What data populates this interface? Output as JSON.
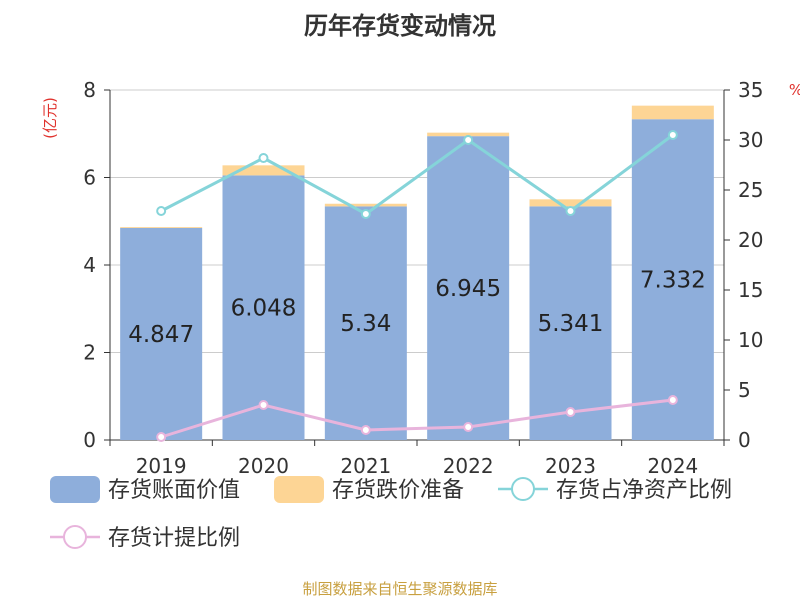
{
  "title": "历年存货变动情况",
  "footer": "制图数据来自恒生聚源数据库",
  "chart_data": {
    "type": "bar",
    "stacked": true,
    "categories": [
      "2019",
      "2020",
      "2021",
      "2022",
      "2023",
      "2024"
    ],
    "left_axis": {
      "unit": "(亿元)",
      "ylim": [
        0,
        8
      ],
      "ticks": [
        0,
        2,
        4,
        6,
        8
      ]
    },
    "right_axis": {
      "unit": "%",
      "ylim": [
        0,
        35
      ],
      "ticks": [
        0,
        5,
        10,
        15,
        20,
        25,
        30,
        35
      ]
    },
    "grid": true,
    "legend_position": "bottom",
    "series": [
      {
        "name": "存货账面价值",
        "kind": "bar",
        "axis": "left",
        "color": "#8eaedb",
        "values": [
          4.847,
          6.048,
          5.34,
          6.945,
          5.341,
          7.332
        ],
        "labels": [
          "4.847",
          "6.048",
          "5.34",
          "6.945",
          "5.341",
          "7.332"
        ]
      },
      {
        "name": "存货跌价准备",
        "kind": "bar",
        "axis": "left",
        "color": "#fdd595",
        "values": [
          0.02,
          0.23,
          0.06,
          0.08,
          0.16,
          0.31
        ]
      },
      {
        "name": "存货占净资产比例",
        "kind": "line",
        "axis": "right",
        "color": "#85d4d9",
        "values": [
          22.9,
          28.2,
          22.6,
          30.0,
          22.9,
          30.5
        ]
      },
      {
        "name": "存货计提比例",
        "kind": "line",
        "axis": "right",
        "color": "#e8b4dc",
        "values": [
          0.3,
          3.5,
          1.0,
          1.3,
          2.8,
          4.0
        ]
      }
    ]
  }
}
